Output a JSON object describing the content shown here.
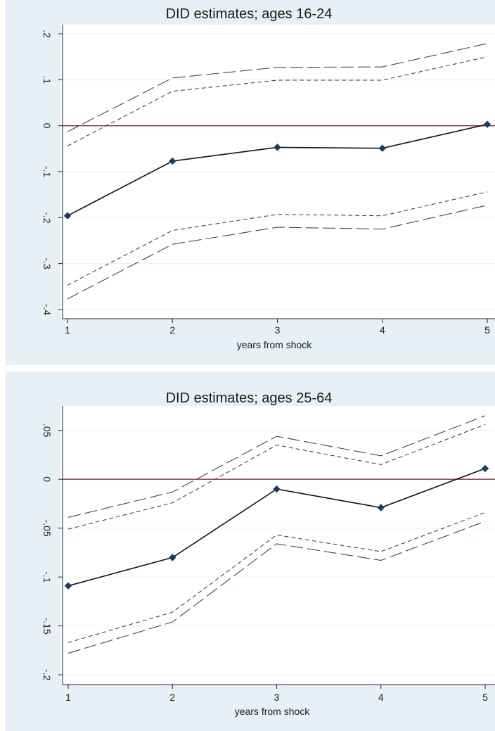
{
  "chart_data": [
    {
      "type": "line",
      "title": "DID estimates; ages 16-24",
      "xlabel": "years from shock",
      "ylabel": "",
      "x": [
        1,
        2,
        3,
        4,
        5
      ],
      "xticks": [
        "1",
        "2",
        "3",
        "4",
        "5"
      ],
      "yticks": [
        {
          "value": 0.2,
          "label": ".2"
        },
        {
          "value": 0.1,
          "label": ".1"
        },
        {
          "value": 0,
          "label": "0"
        },
        {
          "value": -0.1,
          "label": "-.1"
        },
        {
          "value": -0.2,
          "label": "-.2"
        },
        {
          "value": -0.3,
          "label": "-.3"
        },
        {
          "value": -0.4,
          "label": "-.4"
        }
      ],
      "ylim": [
        -0.42,
        0.22
      ],
      "xlim": [
        1,
        5
      ],
      "grid": true,
      "reference_line": {
        "y": 0,
        "color": "#b0203a"
      },
      "series": [
        {
          "role": "estimate",
          "values": [
            -0.196,
            -0.077,
            -0.047,
            -0.049,
            0.003
          ],
          "style": "solid",
          "marker": "diamond",
          "color": "#111111"
        },
        {
          "role": "upper_outer",
          "values": [
            -0.013,
            0.104,
            0.127,
            0.128,
            0.179
          ],
          "style": "long-dash",
          "color": "#333333"
        },
        {
          "role": "upper_inner",
          "values": [
            -0.044,
            0.075,
            0.099,
            0.099,
            0.15
          ],
          "style": "short-dash",
          "color": "#333333"
        },
        {
          "role": "lower_inner",
          "values": [
            -0.347,
            -0.228,
            -0.193,
            -0.196,
            -0.144
          ],
          "style": "short-dash",
          "color": "#333333"
        },
        {
          "role": "lower_outer",
          "values": [
            -0.377,
            -0.258,
            -0.221,
            -0.225,
            -0.173
          ],
          "style": "long-dash",
          "color": "#333333"
        }
      ],
      "colors": {
        "background": "#e9f0f5",
        "plot": "#ffffff",
        "marker": "#1f3b57"
      }
    },
    {
      "type": "line",
      "title": "DID estimates; ages 25-64",
      "xlabel": "years from shock",
      "ylabel": "",
      "x": [
        1,
        2,
        3,
        4,
        5
      ],
      "xticks": [
        "1",
        "2",
        "3",
        "4",
        "5"
      ],
      "yticks": [
        {
          "value": 0.05,
          "label": ".05"
        },
        {
          "value": 0,
          "label": "0"
        },
        {
          "value": -0.05,
          "label": "-.05"
        },
        {
          "value": -0.1,
          "label": "-.1"
        },
        {
          "value": -0.15,
          "label": "-.15"
        },
        {
          "value": -0.2,
          "label": "-.2"
        }
      ],
      "ylim": [
        -0.21,
        0.075
      ],
      "xlim": [
        1,
        5
      ],
      "grid": true,
      "reference_line": {
        "y": 0,
        "color": "#b0203a"
      },
      "series": [
        {
          "role": "estimate",
          "values": [
            -0.109,
            -0.08,
            -0.01,
            -0.029,
            0.011
          ],
          "style": "solid",
          "marker": "diamond",
          "color": "#111111"
        },
        {
          "role": "upper_outer",
          "values": [
            -0.039,
            -0.013,
            0.044,
            0.024,
            0.065
          ],
          "style": "long-dash",
          "color": "#333333"
        },
        {
          "role": "upper_inner",
          "values": [
            -0.051,
            -0.024,
            0.035,
            0.015,
            0.056
          ],
          "style": "short-dash",
          "color": "#333333"
        },
        {
          "role": "lower_inner",
          "values": [
            -0.167,
            -0.136,
            -0.057,
            -0.074,
            -0.034
          ],
          "style": "short-dash",
          "color": "#333333"
        },
        {
          "role": "lower_outer",
          "values": [
            -0.178,
            -0.146,
            -0.066,
            -0.083,
            -0.043
          ],
          "style": "long-dash",
          "color": "#333333"
        }
      ],
      "colors": {
        "background": "#e9f0f5",
        "plot": "#ffffff",
        "marker": "#1f3b57"
      }
    }
  ]
}
